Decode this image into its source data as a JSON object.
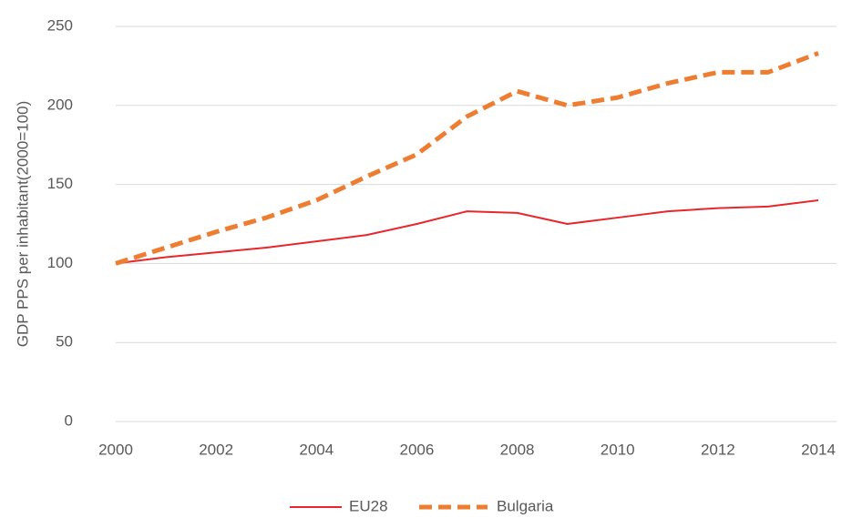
{
  "chart_data": {
    "type": "line",
    "y_label": "GDP PPS per inhabitant(2000=100)",
    "x": [
      2000,
      2001,
      2002,
      2003,
      2004,
      2005,
      2006,
      2007,
      2008,
      2009,
      2010,
      2011,
      2012,
      2013,
      2014
    ],
    "series": [
      {
        "name": "EU28",
        "color": "#e8262b",
        "dashed": false,
        "values": [
          100,
          104,
          107,
          110,
          114,
          118,
          125,
          133,
          132,
          125,
          129,
          133,
          135,
          136,
          140
        ]
      },
      {
        "name": "Bulgaria",
        "color": "#ed7d31",
        "dashed": true,
        "values": [
          100,
          110,
          120,
          129,
          140,
          155,
          169,
          193,
          209,
          200,
          205,
          214,
          221,
          221,
          233
        ]
      }
    ],
    "xlim": [
      2000,
      2014
    ],
    "xticks": [
      2000,
      2002,
      2004,
      2006,
      2008,
      2010,
      2012,
      2014
    ],
    "ylim": [
      0,
      250
    ],
    "yticks": [
      0,
      50,
      100,
      150,
      200,
      250
    ],
    "grid": true,
    "legend": "bottom"
  }
}
